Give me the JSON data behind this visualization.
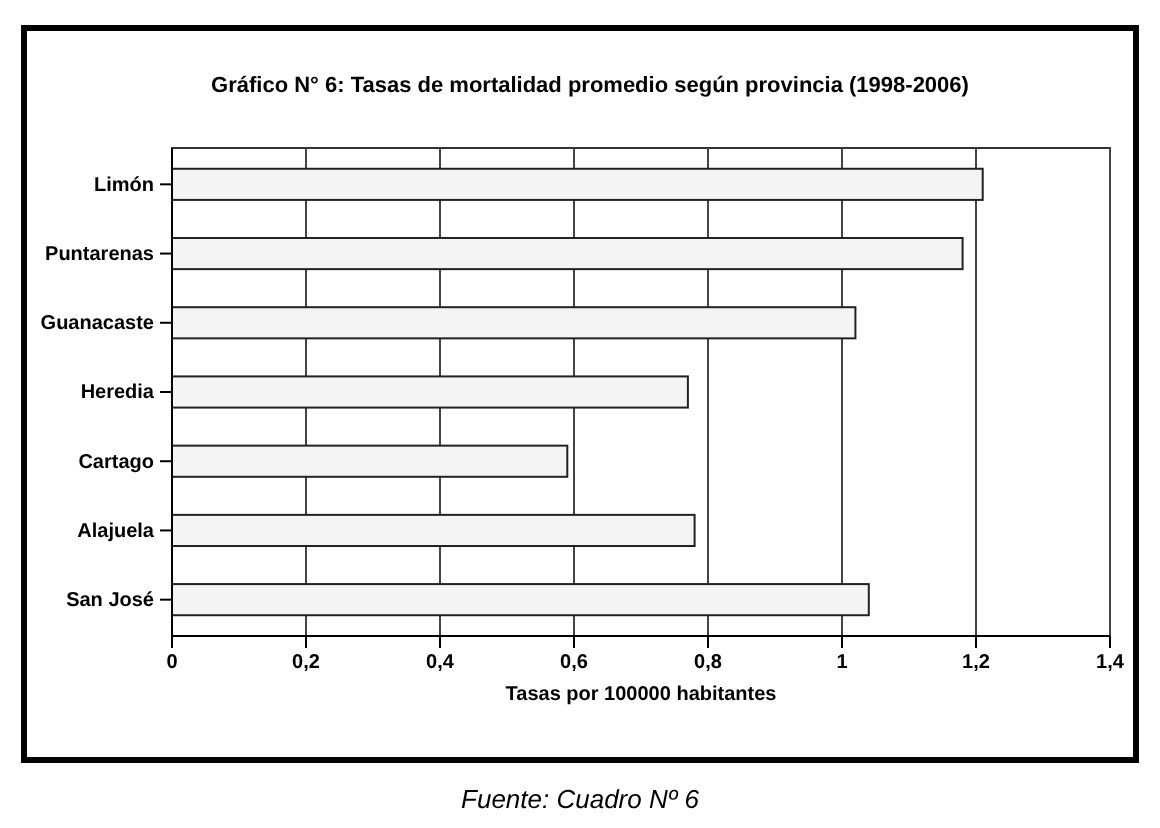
{
  "chart_data": {
    "type": "bar",
    "orientation": "horizontal",
    "title": "Gráfico N° 6: Tasas de mortalidad promedio según provincia (1998-2006)",
    "categories": [
      "Limón",
      "Puntarenas",
      "Guanacaste",
      "Heredia",
      "Cartago",
      "Alajuela",
      "San José"
    ],
    "values": [
      1.21,
      1.18,
      1.02,
      0.77,
      0.59,
      0.78,
      1.04
    ],
    "color": "#f4f4f4",
    "xlabel": "Tasas por 100000 habitantes",
    "xlim": [
      0,
      1.4
    ],
    "xticks": [
      0,
      {
        "value": 0.2,
        "label": "0,2"
      },
      {
        "value": 0.4,
        "label": "0,4"
      },
      {
        "value": 0.6,
        "label": "0,6"
      },
      {
        "value": 0.8,
        "label": "0,8"
      },
      1,
      {
        "value": 1.2,
        "label": "1,2"
      },
      {
        "value": 1.4,
        "label": "1,4"
      }
    ],
    "grid": "x",
    "annotations": [
      "Fuente: Cuadro Nº 6"
    ]
  }
}
